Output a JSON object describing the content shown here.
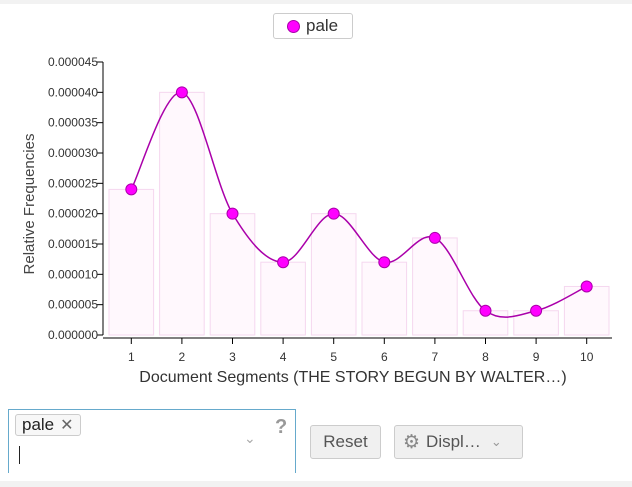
{
  "legend": {
    "series_name": "pale",
    "color": "#ff00ff"
  },
  "chart_data": {
    "type": "bar",
    "categories": [
      "1",
      "2",
      "3",
      "4",
      "5",
      "6",
      "7",
      "8",
      "9",
      "10"
    ],
    "values": [
      2.4e-05,
      4e-05,
      2e-05,
      1.2e-05,
      2e-05,
      1.2e-05,
      1.6e-05,
      4e-06,
      4e-06,
      8e-06
    ],
    "overlay": "smoothed line with points",
    "xlabel": "Document Segments (THE STORY BEGUN BY WALTER…)",
    "ylabel": "Relative Frequencies",
    "ylim": [
      0,
      4.5e-05
    ],
    "yticks": [
      "0.000000",
      "0.000005",
      "0.000010",
      "0.000015",
      "0.000020",
      "0.000025",
      "0.000030",
      "0.000035",
      "0.000040",
      "0.000045"
    ],
    "ytick_values": [
      0,
      5e-06,
      1e-05,
      1.5e-05,
      2e-05,
      2.5e-05,
      3e-05,
      3.5e-05,
      4e-05,
      4.5e-05
    ],
    "grid": false,
    "legend_position": "top-center",
    "bar_fill": "#fff8fd",
    "bar_stroke": "#f5d7ef",
    "line_color": "#aa00aa",
    "point_fill": "#ff00ff"
  },
  "controls": {
    "search_token": "pale",
    "remove_symbol": "✕",
    "dropdown_symbol": "⌄",
    "help_symbol": "?",
    "reset_label": "Reset",
    "display_label": "Displ…",
    "gear_symbol": "⚙",
    "display_chevron": "⌄"
  }
}
